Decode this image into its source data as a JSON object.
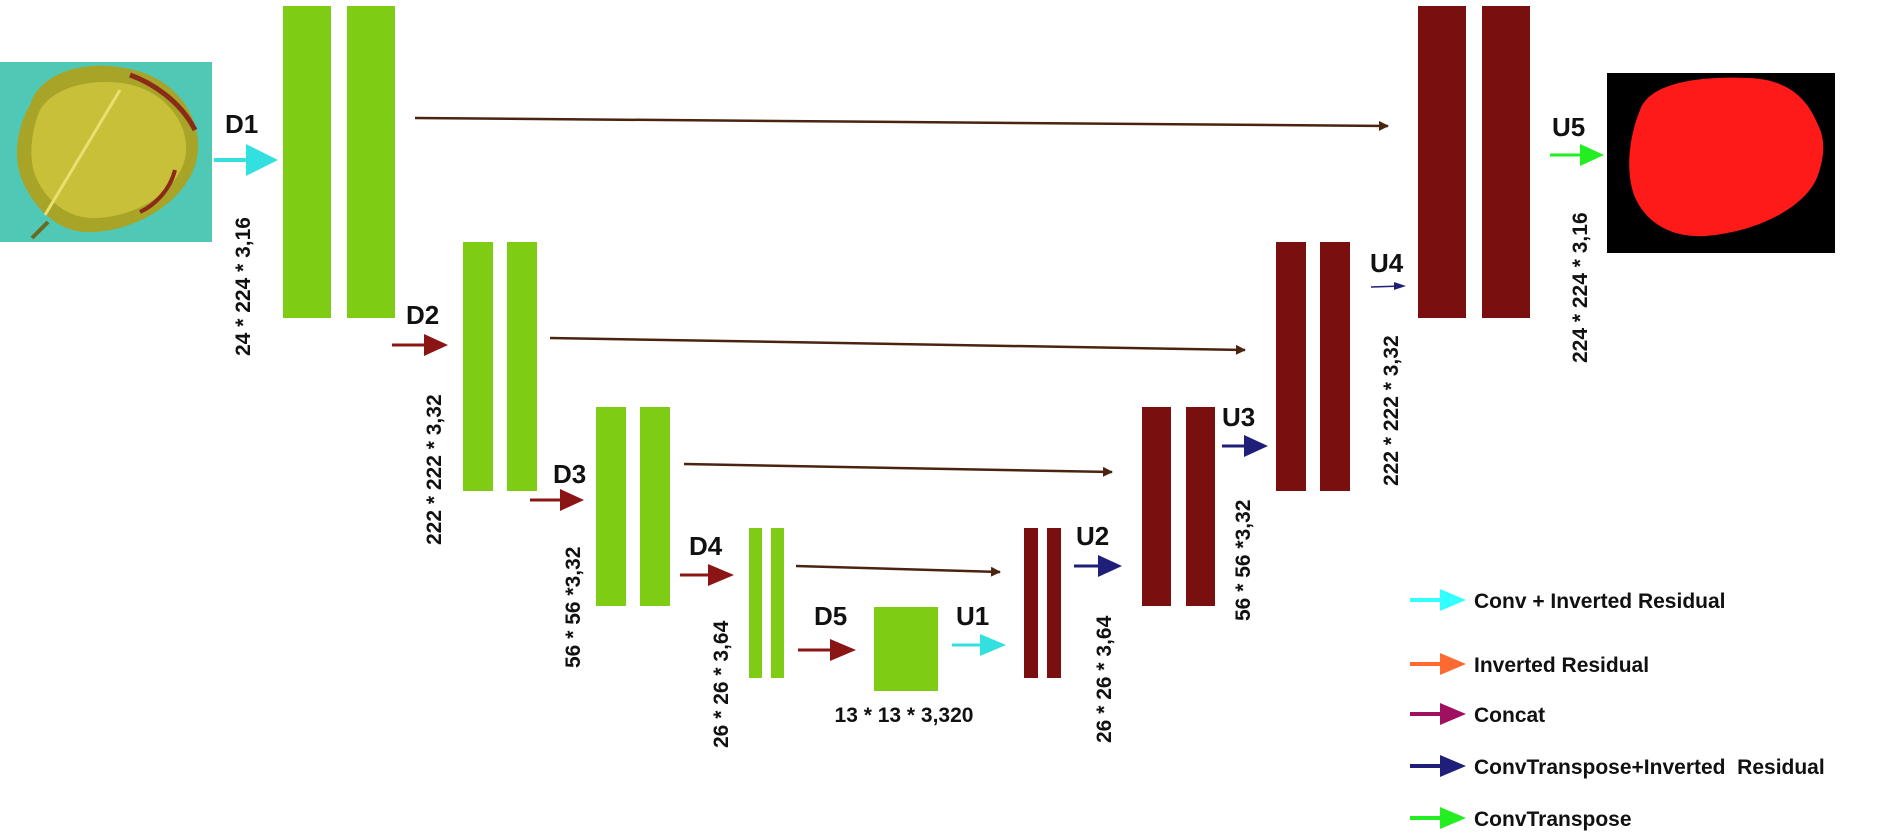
{
  "stages": {
    "d1": "D1",
    "d2": "D2",
    "d3": "D3",
    "d4": "D4",
    "d5": "D5",
    "u1": "U1",
    "u2": "U2",
    "u3": "U3",
    "u4": "U4",
    "u5": "U5"
  },
  "dims": {
    "input": "24 * 224 * 3,16",
    "d2": "222 * 222 * 3,32",
    "d3": "56 * 56 *3,32",
    "d4": "26 * 26 * 3,64",
    "bottleneck": "13 * 13 * 3,320",
    "u2": "26 * 26 * 3,64",
    "u3": "56 * 56 *3,32",
    "u4": "222 * 222 * 3,32",
    "output": "224 * 224 * 3,16"
  },
  "legend": [
    {
      "label": "Conv + Inverted Residual",
      "color": "#33ffff"
    },
    {
      "label": "Inverted Residual",
      "color": "#ff6a33"
    },
    {
      "label": "Concat",
      "color": "#a01060"
    },
    {
      "label": "ConvTranspose+Inverted  Residual",
      "color": "#1f1f7a"
    },
    {
      "label": "ConvTranspose",
      "color": "#22ee22"
    }
  ],
  "colors": {
    "encoder": "#7fcc14",
    "decoder": "#7a0f0f",
    "skip": "#4a2410",
    "down_arrow": "#8b1414",
    "up_arrow": "#1f1f7a",
    "entry_arrow": "#33e0e0",
    "output_arrow": "#22ee22",
    "mask": "#ff1a1a"
  },
  "images": {
    "input": "leaf-photo",
    "output": "segmentation-mask"
  }
}
